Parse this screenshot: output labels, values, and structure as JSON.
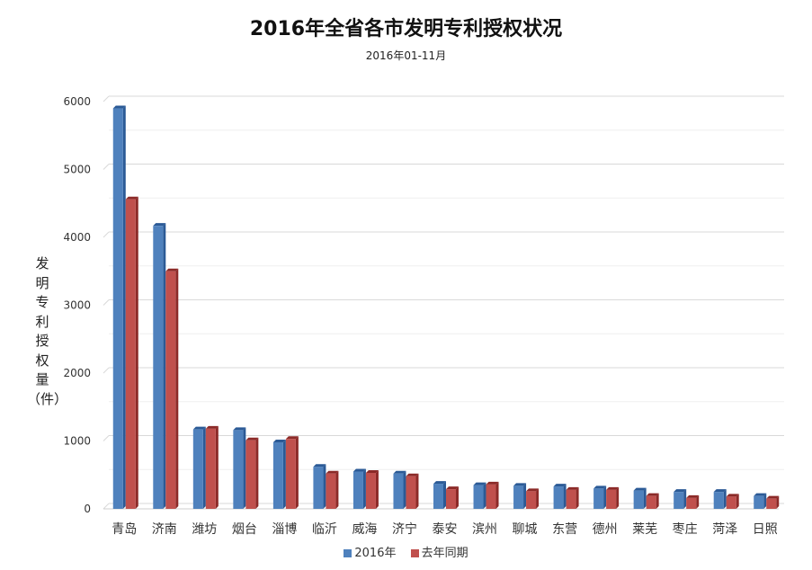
{
  "chart_data": {
    "type": "bar",
    "title": "2016年全省各市发明专利授权状况",
    "subtitle": "2016年01-11月",
    "ylabel": "发明专利授权量（件）",
    "ylabel_chars": [
      "发",
      "明",
      "专",
      "利",
      "授",
      "权",
      "量",
      "（件）"
    ],
    "xlabel": "",
    "ylim": [
      0,
      6000
    ],
    "yticks": [
      0,
      1000,
      2000,
      3000,
      4000,
      5000,
      6000
    ],
    "grid": true,
    "legend_position": "bottom",
    "categories": [
      "青岛",
      "济南",
      "潍坊",
      "烟台",
      "淄博",
      "临沂",
      "威海",
      "济宁",
      "泰安",
      "滨州",
      "聊城",
      "东营",
      "德州",
      "莱芜",
      "枣庄",
      "菏泽",
      "日照"
    ],
    "series": [
      {
        "name": "2016年",
        "color": "#4F81BD",
        "side_color": "#2B5A96",
        "values": [
          5900,
          4170,
          1170,
          1160,
          980,
          620,
          550,
          520,
          370,
          350,
          340,
          330,
          300,
          270,
          250,
          250,
          190
        ]
      },
      {
        "name": "去年同期",
        "color": "#C0504D",
        "side_color": "#8C2A28",
        "values": [
          4560,
          3500,
          1180,
          1010,
          1030,
          520,
          530,
          480,
          290,
          360,
          260,
          280,
          280,
          190,
          160,
          180,
          150
        ]
      }
    ]
  }
}
